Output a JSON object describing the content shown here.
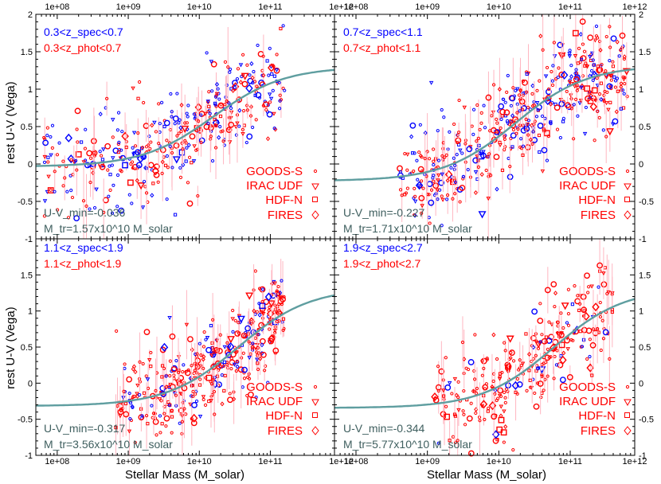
{
  "colors": {
    "spec": "#0000ff",
    "phot": "#ff0000",
    "fit": "#5f9ea0",
    "fit_text": "#3f5f5f",
    "errbar": "#ffb6c1"
  },
  "chart_data": {
    "type": "scatter",
    "xlabel": "Stellar Mass (M_solar)",
    "ylabel": "rest U-V (Vega)",
    "xscale": "log",
    "xlim": [
      50000000,
      800000000000
    ],
    "ylim": [
      -1,
      2
    ],
    "x_tick_labels": [
      "1e+08",
      "1e+09",
      "1e+10",
      "1e+11",
      "1e+12"
    ],
    "x_tick_values": [
      100000000,
      1000000000,
      10000000000,
      100000000000,
      1000000000000
    ],
    "y_tick_labels": [
      "-1",
      "-0.5",
      "0",
      "0.5",
      "1",
      "1.5",
      "2"
    ],
    "y_tick_values": [
      -1,
      -0.5,
      0,
      0.5,
      1,
      1.5,
      2
    ],
    "legend": [
      "GOODS-S",
      "IRAC UDF",
      "HDF-N",
      "FIRES"
    ],
    "panels": [
      {
        "zspec_label": "0.3<z_spec<0.7",
        "zphot_label": "0.3<z_phot<0.7",
        "uv_min_label": "U-V_min=-0.036",
        "m_tr_label": "M_tr=1.57x10^10 M_solar",
        "uv_min": -0.036,
        "m_tr": 15700000000,
        "uv_max": 1.3,
        "width": 0.5,
        "points": {
          "n": 420,
          "logm_range": [
            7.8,
            11.2
          ],
          "spec_fraction": 0.4
        }
      },
      {
        "zspec_label": "0.7<z_spec<1.1",
        "zphot_label": "0.7<z_phot<1.1",
        "uv_min_label": "U-V_min=-0.227",
        "m_tr_label": "M_tr=1.71x10^10 M_solar",
        "uv_min": -0.227,
        "m_tr": 17100000000,
        "uv_max": 1.32,
        "width": 0.5,
        "points": {
          "n": 520,
          "logm_range": [
            8.6,
            11.8
          ],
          "spec_fraction": 0.4
        }
      },
      {
        "zspec_label": "1.1<z_spec<1.9",
        "zphot_label": "1.1<z_phot<1.9",
        "uv_min_label": "U-V_min=-0.317",
        "m_tr_label": "M_tr=3.56x10^10 M_solar",
        "uv_min": -0.317,
        "m_tr": 35600000000,
        "uv_max": 1.32,
        "width": 0.5,
        "points": {
          "n": 420,
          "logm_range": [
            8.8,
            11.2
          ],
          "spec_fraction": 0.25
        }
      },
      {
        "zspec_label": "1.9<z_spec<2.7",
        "zphot_label": "1.9<z_phot<2.7",
        "uv_min_label": "U-V_min=-0.344",
        "m_tr_label": "M_tr=5.77x10^10 M_solar",
        "uv_min": -0.344,
        "m_tr": 57700000000,
        "uv_max": 1.32,
        "width": 0.5,
        "points": {
          "n": 300,
          "logm_range": [
            9.1,
            11.6
          ],
          "spec_fraction": 0.1
        }
      }
    ]
  }
}
